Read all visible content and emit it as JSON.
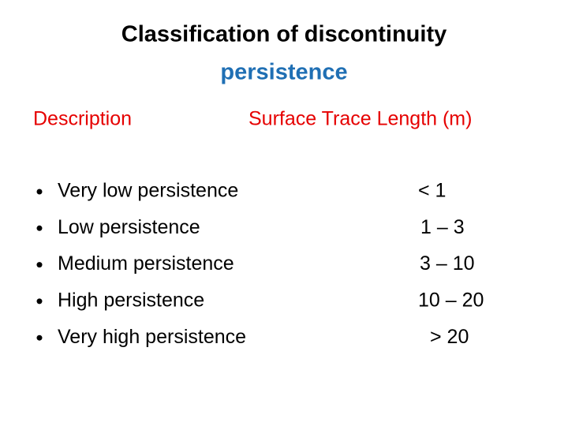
{
  "title": {
    "line1": "Classification of discontinuity",
    "line2": "persistence"
  },
  "table": {
    "headers": [
      "Description",
      "Surface Trace Length (m)"
    ],
    "rows": [
      [
        "Very low persistence",
        "< 1"
      ],
      [
        "Low persistence",
        "1 – 3"
      ],
      [
        "Medium persistence",
        "3 – 10"
      ],
      [
        "High persistence",
        "10 – 20"
      ],
      [
        "Very high persistence",
        "> 20"
      ]
    ]
  }
}
